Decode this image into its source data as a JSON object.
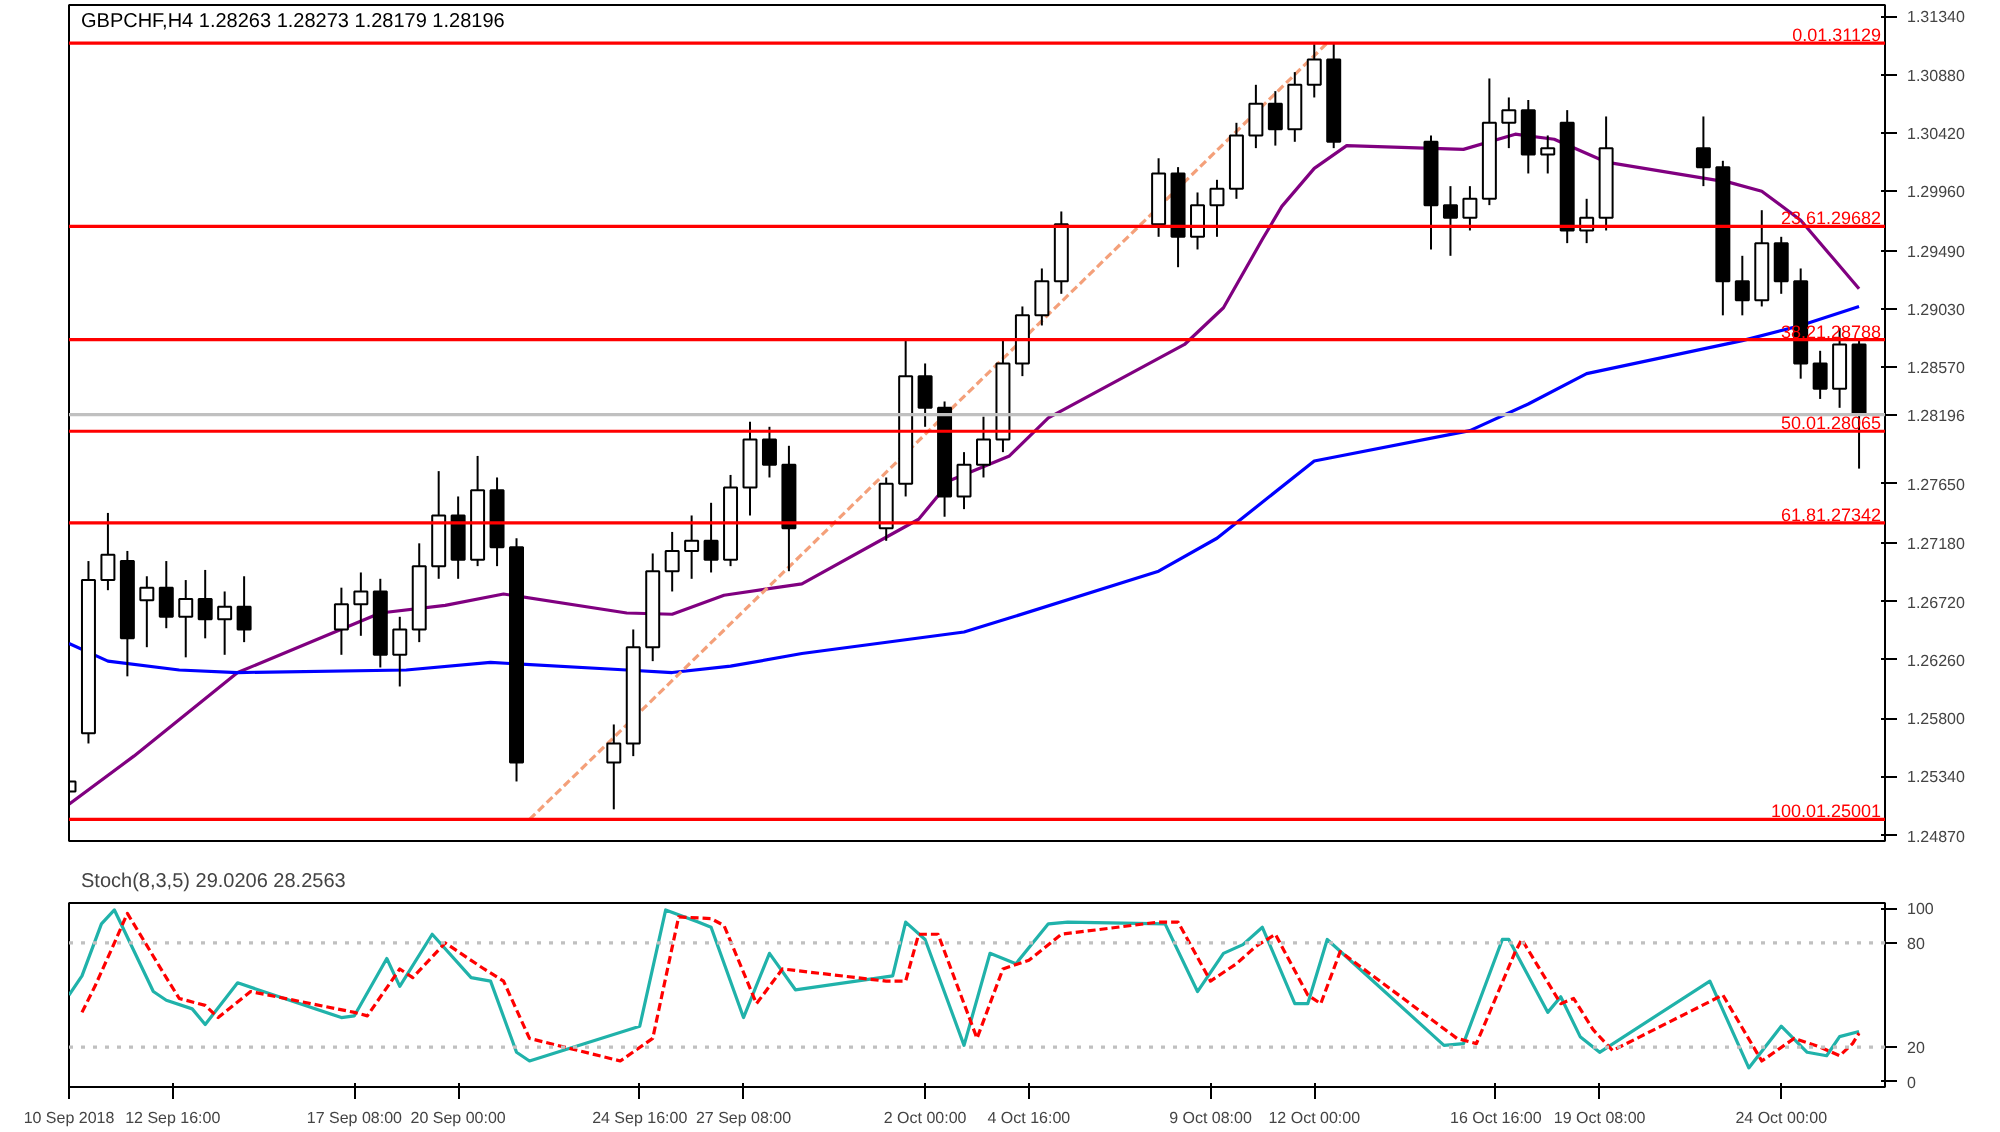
{
  "chart_data": [
    {
      "type": "candlestick",
      "title": "GBPCHF,H4 1.28263 1.28273 1.28179 1.28196",
      "x": [
        "2018-09-10T00:00",
        "2018-09-10T12:00",
        "2018-09-11T00:00",
        "2018-09-11T12:00",
        "2018-09-12T00:00",
        "2018-09-12T12:00",
        "2018-09-13T00:00",
        "2018-09-13T12:00",
        "2018-09-14T00:00",
        "2018-09-14T12:00",
        "2018-09-17T00:00",
        "2018-09-17T12:00",
        "2018-09-18T00:00",
        "2018-09-18T12:00",
        "2018-09-19T00:00",
        "2018-09-19T12:00",
        "2018-09-20T00:00",
        "2018-09-20T12:00",
        "2018-09-21T00:00",
        "2018-09-21T12:00",
        "2018-09-24T00:00",
        "2018-09-24T12:00",
        "2018-09-25T00:00",
        "2018-09-25T12:00",
        "2018-09-26T00:00",
        "2018-09-26T12:00",
        "2018-09-27T00:00",
        "2018-09-27T12:00",
        "2018-09-28T00:00",
        "2018-09-28T12:00",
        "2018-10-01T00:00",
        "2018-10-01T12:00",
        "2018-10-02T00:00",
        "2018-10-02T12:00",
        "2018-10-03T00:00",
        "2018-10-03T12:00",
        "2018-10-04T00:00",
        "2018-10-04T12:00",
        "2018-10-05T00:00",
        "2018-10-05T12:00",
        "2018-10-08T00:00",
        "2018-10-08T12:00",
        "2018-10-09T00:00",
        "2018-10-09T12:00",
        "2018-10-10T00:00",
        "2018-10-10T12:00",
        "2018-10-11T00:00",
        "2018-10-11T12:00",
        "2018-10-12T00:00",
        "2018-10-12T12:00",
        "2018-10-15T00:00",
        "2018-10-15T12:00",
        "2018-10-16T00:00",
        "2018-10-16T12:00",
        "2018-10-17T00:00",
        "2018-10-17T12:00",
        "2018-10-18T00:00",
        "2018-10-18T12:00",
        "2018-10-19T00:00",
        "2018-10-19T12:00",
        "2018-10-22T00:00",
        "2018-10-22T12:00",
        "2018-10-23T00:00",
        "2018-10-23T12:00",
        "2018-10-24T00:00",
        "2018-10-24T12:00",
        "2018-10-25T00:00",
        "2018-10-25T12:00",
        "2018-10-26T00:00"
      ],
      "ohlc": [
        [
          1.2522,
          1.2538,
          1.251,
          1.253
        ],
        [
          1.2568,
          1.2704,
          1.256,
          1.2689
        ],
        [
          1.2689,
          1.2742,
          1.2681,
          1.2709
        ],
        [
          1.2704,
          1.2712,
          1.2613,
          1.2643
        ],
        [
          1.2673,
          1.2692,
          1.2636,
          1.2683
        ],
        [
          1.2683,
          1.2704,
          1.2651,
          1.266
        ],
        [
          1.266,
          1.2689,
          1.2628,
          1.2674
        ],
        [
          1.2674,
          1.2697,
          1.2643,
          1.2658
        ],
        [
          1.2658,
          1.268,
          1.263,
          1.2668
        ],
        [
          1.2668,
          1.2692,
          1.264,
          1.265
        ],
        [
          1.265,
          1.2683,
          1.263,
          1.267
        ],
        [
          1.267,
          1.2695,
          1.2645,
          1.268
        ],
        [
          1.268,
          1.269,
          1.262,
          1.263
        ],
        [
          1.263,
          1.266,
          1.2605,
          1.265
        ],
        [
          1.265,
          1.2718,
          1.264,
          1.27
        ],
        [
          1.27,
          1.2775,
          1.269,
          1.274
        ],
        [
          1.274,
          1.2755,
          1.269,
          1.2705
        ],
        [
          1.2705,
          1.2787,
          1.27,
          1.276
        ],
        [
          1.276,
          1.277,
          1.27,
          1.2715
        ],
        [
          1.2715,
          1.2722,
          1.253,
          1.2545
        ],
        [
          1.2545,
          1.2575,
          1.2508,
          1.256
        ],
        [
          1.256,
          1.265,
          1.255,
          1.2636
        ],
        [
          1.2636,
          1.271,
          1.2625,
          1.2696
        ],
        [
          1.2696,
          1.2727,
          1.268,
          1.2712
        ],
        [
          1.2712,
          1.274,
          1.269,
          1.272
        ],
        [
          1.272,
          1.275,
          1.2695,
          1.2705
        ],
        [
          1.2705,
          1.2772,
          1.27,
          1.2762
        ],
        [
          1.2762,
          1.2814,
          1.274,
          1.28
        ],
        [
          1.28,
          1.281,
          1.277,
          1.278
        ],
        [
          1.278,
          1.2795,
          1.2696,
          1.273
        ],
        [
          1.273,
          1.277,
          1.272,
          1.2765
        ],
        [
          1.2765,
          1.2878,
          1.2755,
          1.285
        ],
        [
          1.285,
          1.286,
          1.281,
          1.2825
        ],
        [
          1.2825,
          1.283,
          1.2739,
          1.2755
        ],
        [
          1.2755,
          1.279,
          1.2745,
          1.278
        ],
        [
          1.278,
          1.2818,
          1.277,
          1.28
        ],
        [
          1.28,
          1.288,
          1.279,
          1.286
        ],
        [
          1.286,
          1.2905,
          1.285,
          1.2898
        ],
        [
          1.2898,
          1.2935,
          1.289,
          1.2925
        ],
        [
          1.2925,
          1.298,
          1.2915,
          1.297
        ],
        [
          1.297,
          1.3022,
          1.296,
          1.301
        ],
        [
          1.301,
          1.3015,
          1.2936,
          1.296
        ],
        [
          1.296,
          1.2995,
          1.295,
          1.2985
        ],
        [
          1.2985,
          1.3005,
          1.296,
          1.2998
        ],
        [
          1.2998,
          1.305,
          1.299,
          1.304
        ],
        [
          1.304,
          1.308,
          1.303,
          1.3065
        ],
        [
          1.3065,
          1.3075,
          1.3032,
          1.3045
        ],
        [
          1.3045,
          1.309,
          1.3035,
          1.308
        ],
        [
          1.308,
          1.3112,
          1.307,
          1.31
        ],
        [
          1.31,
          1.3113,
          1.303,
          1.3035
        ],
        [
          1.3035,
          1.304,
          1.295,
          1.2985
        ],
        [
          1.2985,
          1.3,
          1.2945,
          1.2975
        ],
        [
          1.2975,
          1.3,
          1.2965,
          1.299
        ],
        [
          1.299,
          1.3085,
          1.2985,
          1.305
        ],
        [
          1.305,
          1.307,
          1.303,
          1.306
        ],
        [
          1.306,
          1.3068,
          1.301,
          1.3025
        ],
        [
          1.3025,
          1.304,
          1.301,
          1.303
        ],
        [
          1.305,
          1.306,
          1.2955,
          1.2965
        ],
        [
          1.2965,
          1.299,
          1.2955,
          1.2975
        ],
        [
          1.2975,
          1.3055,
          1.2965,
          1.303
        ],
        [
          1.303,
          1.3055,
          1.3,
          1.3015
        ],
        [
          1.3015,
          1.302,
          1.2898,
          1.2925
        ],
        [
          1.2925,
          1.2945,
          1.2898,
          1.291
        ],
        [
          1.291,
          1.2981,
          1.2905,
          1.2955
        ],
        [
          1.2955,
          1.296,
          1.2915,
          1.2925
        ],
        [
          1.2925,
          1.2935,
          1.2848,
          1.286
        ],
        [
          1.286,
          1.287,
          1.2832,
          1.284
        ],
        [
          1.284,
          1.2888,
          1.2825,
          1.2875
        ],
        [
          1.2875,
          1.288,
          1.2777,
          1.282
        ]
      ],
      "series": [
        {
          "type": "line",
          "color": "#800080",
          "x": [
            "2018-09-10T00:00",
            "2018-09-11T16:00",
            "2018-09-14T08:00",
            "2018-09-18T00:00",
            "2018-09-19T16:00",
            "2018-09-21T04:00",
            "2018-09-24T08:00",
            "2018-09-25T12:00",
            "2018-09-26T20:00",
            "2018-09-28T20:00",
            "2018-10-01T20:00",
            "2018-10-02T16:00",
            "2018-10-04T04:00",
            "2018-10-05T04:00",
            "2018-10-08T16:00",
            "2018-10-09T16:00",
            "2018-10-10T16:00",
            "2018-10-11T04:00",
            "2018-10-12T00:00",
            "2018-10-12T20:00",
            "2018-10-15T20:00",
            "2018-10-17T04:00",
            "2018-10-18T04:00",
            "2018-10-19T12:00",
            "2018-10-22T16:00",
            "2018-10-23T12:00",
            "2018-10-24T12:00",
            "2018-10-25T08:00",
            "2018-10-26T00:00"
          ],
          "values": [
            1.2512,
            1.255,
            1.2616,
            1.2663,
            1.2669,
            1.2678,
            1.2663,
            1.2662,
            1.2677,
            1.2686,
            1.2737,
            1.2768,
            1.2787,
            1.2817,
            1.2875,
            1.2904,
            1.2958,
            1.2984,
            1.3014,
            1.3032,
            1.3029,
            1.3041,
            1.3037,
            1.3019,
            1.3003,
            1.2996,
            1.2973,
            1.2943,
            1.2919
          ]
        },
        {
          "type": "line",
          "color": "#0000ff",
          "x": [
            "2018-09-10T00:00",
            "2018-09-11T00:00",
            "2018-09-12T20:00",
            "2018-09-14T08:00",
            "2018-09-18T16:00",
            "2018-09-20T20:00",
            "2018-09-24T08:00",
            "2018-09-25T12:00",
            "2018-09-27T00:00",
            "2018-09-28T20:00",
            "2018-10-03T00:00",
            "2018-10-04T04:00",
            "2018-10-08T00:00",
            "2018-10-09T12:00",
            "2018-10-12T00:00",
            "2018-10-16T00:00",
            "2018-10-17T12:00",
            "2018-10-19T00:00",
            "2018-10-23T00:00",
            "2018-10-24T12:00",
            "2018-10-26T00:00"
          ],
          "values": [
            1.2639,
            1.2625,
            1.2618,
            1.2616,
            1.2618,
            1.2624,
            1.2618,
            1.2616,
            1.2621,
            1.2631,
            1.2648,
            1.2659,
            1.2696,
            1.2722,
            1.2783,
            1.2807,
            1.2828,
            1.2852,
            1.2878,
            1.289,
            1.2905
          ]
        },
        {
          "type": "line",
          "color": "#f4a07a",
          "line_style": "dashed",
          "x": [
            "2018-09-21T20:00",
            "2018-10-12T08:00"
          ],
          "values": [
            1.25,
            1.3113
          ]
        }
      ],
      "xlim": [
        "2018-09-10T00:00",
        "2018-10-26T16:00"
      ],
      "ylim": [
        1.2483,
        1.3143
      ],
      "yticks": [
        {
          "value": 1.3134,
          "label": "1.31340"
        },
        {
          "value": 1.3088,
          "label": "1.30880"
        },
        {
          "value": 1.3042,
          "label": "1.30420"
        },
        {
          "value": 1.2996,
          "label": "1.29960"
        },
        {
          "value": 1.2949,
          "label": "1.29490"
        },
        {
          "value": 1.2903,
          "label": "1.29030"
        },
        {
          "value": 1.2857,
          "label": "1.28570"
        },
        {
          "value": 1.2765,
          "label": "1.27650"
        },
        {
          "value": 1.2718,
          "label": "1.27180"
        },
        {
          "value": 1.2672,
          "label": "1.26720"
        },
        {
          "value": 1.2626,
          "label": "1.26260"
        },
        {
          "value": 1.258,
          "label": "1.25800"
        },
        {
          "value": 1.2534,
          "label": "1.25340"
        },
        {
          "value": 1.2487,
          "label": "1.24870"
        }
      ],
      "ref_lines": [
        {
          "axis": "y",
          "value": 1.31129,
          "label": "0.01.31129",
          "color": "#ff0000"
        },
        {
          "axis": "y",
          "value": 1.29682,
          "label": "23.61.29682",
          "color": "#ff0000"
        },
        {
          "axis": "y",
          "value": 1.28788,
          "label": "38.21.28788",
          "color": "#ff0000"
        },
        {
          "axis": "y",
          "value": 1.28065,
          "label": "50.01.28065",
          "color": "#ff0000"
        },
        {
          "axis": "y",
          "value": 1.27342,
          "label": "61.81.27342",
          "color": "#ff0000"
        },
        {
          "axis": "y",
          "value": 1.25001,
          "label": "100.01.25001",
          "color": "#ff0000"
        },
        {
          "axis": "y",
          "value": 1.28196,
          "label": "1.28196",
          "color": "#c0c0c0"
        }
      ],
      "tick_labels": "y",
      "grid": false
    },
    {
      "type": "line",
      "title": "Stoch(8,3,5) 29.0206 28.2563",
      "series": [
        {
          "color": "#20b2aa",
          "x": [
            "2018-09-10T00:00",
            "2018-09-10T08:00",
            "2018-09-10T20:00",
            "2018-09-11T04:00",
            "2018-09-12T04:00",
            "2018-09-12T12:00",
            "2018-09-13T04:00",
            "2018-09-13T12:00",
            "2018-09-14T08:00",
            "2018-09-17T00:00",
            "2018-09-17T08:00",
            "2018-09-18T04:00",
            "2018-09-18T12:00",
            "2018-09-19T08:00",
            "2018-09-20T08:00",
            "2018-09-20T20:00",
            "2018-09-21T12:00",
            "2018-09-21T20:00",
            "2018-09-24T16:00",
            "2018-09-25T08:00",
            "2018-09-26T04:00",
            "2018-09-26T12:00",
            "2018-09-27T08:00",
            "2018-09-28T00:00",
            "2018-09-28T16:00",
            "2018-10-01T04:00",
            "2018-10-01T12:00",
            "2018-10-02T00:00",
            "2018-10-03T00:00",
            "2018-10-03T16:00",
            "2018-10-04T08:00",
            "2018-10-05T04:00",
            "2018-10-05T16:00",
            "2018-10-08T04:00",
            "2018-10-09T00:00",
            "2018-10-09T16:00",
            "2018-10-10T04:00",
            "2018-10-10T16:00",
            "2018-10-11T12:00",
            "2018-10-11T20:00",
            "2018-10-12T08:00",
            "2018-10-15T08:00",
            "2018-10-15T20:00",
            "2018-10-16T20:00",
            "2018-10-17T00:00",
            "2018-10-18T00:00",
            "2018-10-18T08:00",
            "2018-10-18T20:00",
            "2018-10-19T08:00",
            "2018-10-22T04:00",
            "2018-10-23T04:00",
            "2018-10-24T00:00",
            "2018-10-24T16:00",
            "2018-10-25T04:00",
            "2018-10-25T12:00",
            "2018-10-26T00:00"
          ],
          "values": [
            50,
            61,
            91,
            99,
            52,
            47,
            42,
            33,
            57,
            37,
            38,
            71,
            55,
            85,
            60,
            58,
            17,
            12,
            32,
            99,
            92,
            89,
            37,
            74,
            53,
            61,
            92,
            82,
            21,
            74,
            68,
            91,
            92,
            91,
            52,
            74,
            79,
            89,
            45,
            45,
            82,
            21,
            22,
            82,
            82,
            40,
            49,
            26,
            17,
            58,
            8,
            32,
            17,
            15,
            26,
            29
          ]
        },
        {
          "color": "#ff0000",
          "line_style": "dashed",
          "x": [
            "2018-09-10T08:00",
            "2018-09-10T16:00",
            "2018-09-11T04:00",
            "2018-09-11T12:00",
            "2018-09-12T12:00",
            "2018-09-12T20:00",
            "2018-09-13T12:00",
            "2018-09-13T20:00",
            "2018-09-14T16:00",
            "2018-09-17T08:00",
            "2018-09-17T16:00",
            "2018-09-18T12:00",
            "2018-09-18T20:00",
            "2018-09-19T16:00",
            "2018-09-20T16:00",
            "2018-09-21T04:00",
            "2018-09-21T20:00",
            "2018-09-24T04:00",
            "2018-09-25T00:00",
            "2018-09-25T16:00",
            "2018-09-26T12:00",
            "2018-09-26T20:00",
            "2018-09-27T16:00",
            "2018-09-28T08:00",
            "2018-10-01T00:00",
            "2018-10-01T12:00",
            "2018-10-01T20:00",
            "2018-10-02T08:00",
            "2018-10-03T08:00",
            "2018-10-04T00:00",
            "2018-10-04T16:00",
            "2018-10-05T12:00",
            "2018-10-08T00:00",
            "2018-10-08T12:00",
            "2018-10-09T08:00",
            "2018-10-10T00:00",
            "2018-10-10T12:00",
            "2018-10-11T00:00",
            "2018-10-11T20:00",
            "2018-10-12T04:00",
            "2018-10-12T16:00",
            "2018-10-15T16:00",
            "2018-10-16T04:00",
            "2018-10-17T04:00",
            "2018-10-17T08:00",
            "2018-10-18T08:00",
            "2018-10-18T16:00",
            "2018-10-19T04:00",
            "2018-10-19T16:00",
            "2018-10-22T12:00",
            "2018-10-23T12:00",
            "2018-10-24T08:00",
            "2018-10-25T00:00",
            "2018-10-25T12:00",
            "2018-10-25T20:00",
            "2018-10-26T00:00"
          ],
          "values": [
            40,
            55,
            80,
            97,
            60,
            48,
            44,
            37,
            52,
            40,
            38,
            65,
            60,
            80,
            65,
            58,
            25,
            12,
            25,
            95,
            94,
            90,
            45,
            65,
            58,
            58,
            85,
            85,
            25,
            65,
            70,
            85,
            92,
            92,
            58,
            68,
            78,
            85,
            50,
            45,
            75,
            25,
            22,
            75,
            82,
            45,
            48,
            30,
            18,
            50,
            12,
            25,
            20,
            15,
            22,
            28
          ]
        }
      ],
      "xlim": [
        "2018-09-10T00:00",
        "2018-10-26T16:00"
      ],
      "ylim": [
        -3,
        103
      ],
      "xticks": [
        {
          "value": "2018-09-10T00:00",
          "label": "10 Sep 2018"
        },
        {
          "value": "2018-09-12T16:00",
          "label": "12 Sep 16:00"
        },
        {
          "value": "2018-09-17T08:00",
          "label": "17 Sep 08:00"
        },
        {
          "value": "2018-09-20T00:00",
          "label": "20 Sep 00:00"
        },
        {
          "value": "2018-09-24T16:00",
          "label": "24 Sep 16:00"
        },
        {
          "value": "2018-09-27T08:00",
          "label": "27 Sep 08:00"
        },
        {
          "value": "2018-10-02T00:00",
          "label": "2 Oct 00:00"
        },
        {
          "value": "2018-10-04T16:00",
          "label": "4 Oct 16:00"
        },
        {
          "value": "2018-10-09T08:00",
          "label": "9 Oct 08:00"
        },
        {
          "value": "2018-10-12T00:00",
          "label": "12 Oct 00:00"
        },
        {
          "value": "2018-10-16T16:00",
          "label": "16 Oct 16:00"
        },
        {
          "value": "2018-10-19T08:00",
          "label": "19 Oct 08:00"
        },
        {
          "value": "2018-10-24T00:00",
          "label": "24 Oct 00:00"
        }
      ],
      "yticks": [
        0,
        20,
        80,
        100
      ],
      "ref_lines": [
        {
          "axis": "y",
          "value": 80,
          "color": "#c0c0c0",
          "line_style": "dotted"
        },
        {
          "axis": "y",
          "value": 20,
          "color": "#c0c0c0",
          "line_style": "dotted"
        }
      ],
      "grid": false
    }
  ]
}
